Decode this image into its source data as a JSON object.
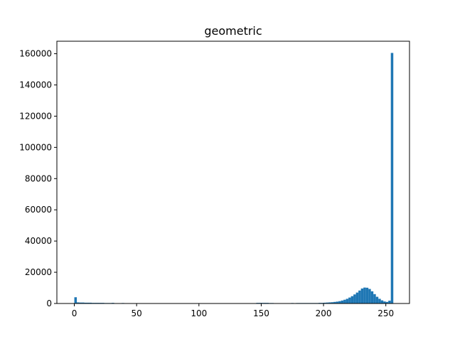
{
  "chart_data": {
    "type": "bar",
    "title": "geometric",
    "xlabel": "",
    "ylabel": "",
    "xlim": [
      -14,
      269
    ],
    "ylim": [
      0,
      168000
    ],
    "xticks": [
      0,
      50,
      100,
      150,
      200,
      250
    ],
    "yticks": [
      0,
      20000,
      40000,
      60000,
      80000,
      100000,
      120000,
      140000,
      160000
    ],
    "bar_width": 2,
    "bar_color": "#1f77b4",
    "grid": false,
    "legend": "none",
    "series": [
      {
        "x": [
          0,
          2,
          4,
          6,
          8,
          10,
          12,
          14,
          16,
          18,
          20,
          22,
          24,
          26,
          28,
          30,
          38,
          146,
          148,
          150,
          152,
          154,
          156,
          158,
          174,
          178,
          180,
          182,
          184,
          186,
          188,
          190,
          192,
          194,
          196,
          198,
          200,
          202,
          204,
          206,
          208,
          210,
          212,
          214,
          216,
          218,
          220,
          222,
          224,
          226,
          228,
          230,
          232,
          234,
          236,
          238,
          240,
          242,
          244,
          246,
          248,
          250,
          252,
          254
        ],
        "values": [
          4000,
          700,
          600,
          600,
          500,
          500,
          500,
          400,
          400,
          400,
          400,
          400,
          300,
          300,
          300,
          400,
          300,
          400,
          400,
          400,
          400,
          400,
          300,
          300,
          300,
          300,
          300,
          300,
          300,
          300,
          300,
          300,
          300,
          300,
          400,
          400,
          500,
          600,
          700,
          800,
          1000,
          1200,
          1500,
          1900,
          2400,
          3000,
          3800,
          4700,
          5800,
          7000,
          8300,
          9600,
          10200,
          10100,
          9300,
          7800,
          6000,
          4300,
          3000,
          2000,
          1300,
          1000,
          1800,
          160500
        ]
      }
    ]
  }
}
